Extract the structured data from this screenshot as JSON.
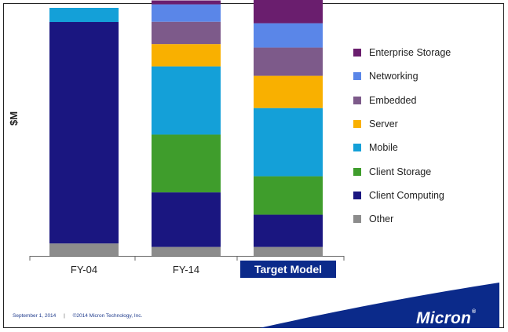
{
  "chart_data": {
    "type": "bar",
    "stacked": true,
    "title": "",
    "xlabel": "",
    "ylabel": "$M",
    "categories": [
      "FY-04",
      "FY-14",
      "Target Model"
    ],
    "highlighted_category": "Target Model",
    "ylim": [
      0,
      100
    ],
    "series": [
      {
        "name": "Other",
        "color": "#8c8c8c",
        "values": [
          5.0,
          3.6,
          3.6
        ]
      },
      {
        "name": "Client Computing",
        "color": "#1a1680",
        "values": [
          89.3,
          22.0,
          13.0
        ]
      },
      {
        "name": "Client Storage",
        "color": "#3f9d2c",
        "values": [
          0,
          23.3,
          15.5
        ]
      },
      {
        "name": "Mobile",
        "color": "#14a0d8",
        "values": [
          5.7,
          27.5,
          27.5
        ]
      },
      {
        "name": "Server",
        "color": "#f9b000",
        "values": [
          0,
          9.0,
          13.0
        ]
      },
      {
        "name": "Embedded",
        "color": "#7d5a8a",
        "values": [
          0,
          9.0,
          11.4
        ]
      },
      {
        "name": "Networking",
        "color": "#5a86e8",
        "values": [
          0,
          7.0,
          9.8
        ]
      },
      {
        "name": "Enterprise Storage",
        "color": "#6a1e6e",
        "values": [
          0,
          1.6,
          9.8
        ]
      }
    ],
    "legend_order": [
      "Enterprise Storage",
      "Networking",
      "Embedded",
      "Server",
      "Mobile",
      "Client Storage",
      "Client Computing",
      "Other"
    ],
    "legend_position": "right",
    "grid": false
  },
  "footer": {
    "date": "September 1, 2014",
    "separator": "|",
    "copyright": "©2014 Micron Technology, Inc."
  },
  "brand": {
    "logo_text": "Micron",
    "accent_color": "#0b2a8a"
  }
}
